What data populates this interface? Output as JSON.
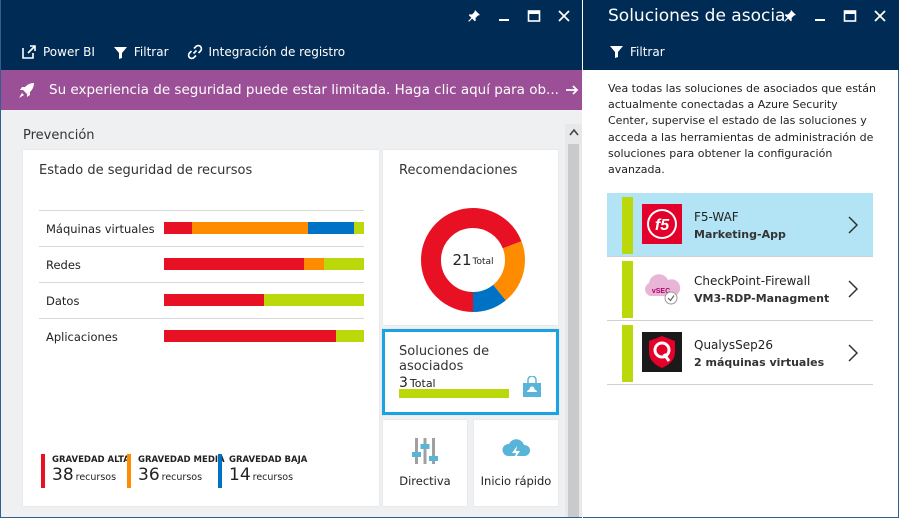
{
  "left_blade": {
    "commands": [
      {
        "label": "Power BI",
        "icon": "external-link-icon"
      },
      {
        "label": "Filtrar",
        "icon": "filter-icon"
      },
      {
        "label": "Integración de registro",
        "icon": "link-icon"
      }
    ],
    "alert": {
      "text": "Su experiencia de seguridad puede estar limitada. Haga clic aquí para ob...",
      "color": "#9b4f96"
    },
    "section_label": "Prevención",
    "security_tile": {
      "title": "Estado de seguridad de recursos",
      "rows": [
        {
          "label": "Máquinas virtuales",
          "segments": [
            {
              "color": "#e81123",
              "fraction": 0.14
            },
            {
              "color": "#ff8c00",
              "fraction": 0.58
            },
            {
              "color": "#0072c6",
              "fraction": 0.23
            },
            {
              "color": "#bad80a",
              "fraction": 0.05
            }
          ]
        },
        {
          "label": "Redes",
          "segments": [
            {
              "color": "#e81123",
              "fraction": 0.7
            },
            {
              "color": "#ff8c00",
              "fraction": 0.1
            },
            {
              "color": "#bad80a",
              "fraction": 0.2
            }
          ]
        },
        {
          "label": "Datos",
          "segments": [
            {
              "color": "#e81123",
              "fraction": 0.5
            },
            {
              "color": "#bad80a",
              "fraction": 0.5
            }
          ]
        },
        {
          "label": "Aplicaciones",
          "segments": [
            {
              "color": "#e81123",
              "fraction": 0.86
            },
            {
              "color": "#bad80a",
              "fraction": 0.14
            }
          ]
        }
      ],
      "severities": [
        {
          "label": "GRAVEDAD ALTA",
          "count": "38",
          "unit": "recursos",
          "color": "#e81123"
        },
        {
          "label": "GRAVEDAD MEDIA",
          "count": "36",
          "unit": "recursos",
          "color": "#ff8c00"
        },
        {
          "label": "GRAVEDAD BAJA",
          "count": "14",
          "unit": "recursos",
          "color": "#0072c6"
        }
      ]
    },
    "recommendations_tile": {
      "title": "Recomendaciones",
      "total": "21",
      "total_label": "Total",
      "segments": [
        {
          "color": "#e81123",
          "fraction": 0.69
        },
        {
          "color": "#ff8c00",
          "fraction": 0.2
        },
        {
          "color": "#0072c6",
          "fraction": 0.11
        }
      ]
    },
    "partners_tile": {
      "title": "Soluciones de asociados",
      "count": "3",
      "count_label": "Total",
      "bar_color": "#bad80a",
      "border_color": "#1aa3e0"
    },
    "policy_tile": {
      "label": "Directiva",
      "icon": "policy-sliders-icon"
    },
    "quick_start_tile": {
      "label": "Inicio rápido",
      "icon": "cloud-lightning-icon"
    }
  },
  "right_blade": {
    "title": "Soluciones de asocia...",
    "commands": [
      {
        "label": "Filtrar",
        "icon": "filter-icon"
      }
    ],
    "description": "Vea todas las soluciones de asociados que están actualmente conectadas a Azure Security Center, supervise el estado de las soluciones y acceda a las herramientas de administración de soluciones para obtener la configuración avanzada.",
    "partners": [
      {
        "name": "F5-WAF",
        "detail": "Marketing-App",
        "logo": "f5-logo-icon",
        "selected": true
      },
      {
        "name": "CheckPoint-Firewall",
        "detail": "VM3-RDP-Managment",
        "logo": "checkpoint-vsec-icon",
        "selected": false
      },
      {
        "name": "QualysSep26",
        "detail": "2 máquinas virtuales",
        "logo": "qualys-shield-icon",
        "selected": false
      }
    ],
    "status_color": "#bad80a",
    "selected_row_color": "#b3e4f5"
  },
  "theme": {
    "titlebar": "#002b55",
    "accent": "#1aa3e0"
  }
}
